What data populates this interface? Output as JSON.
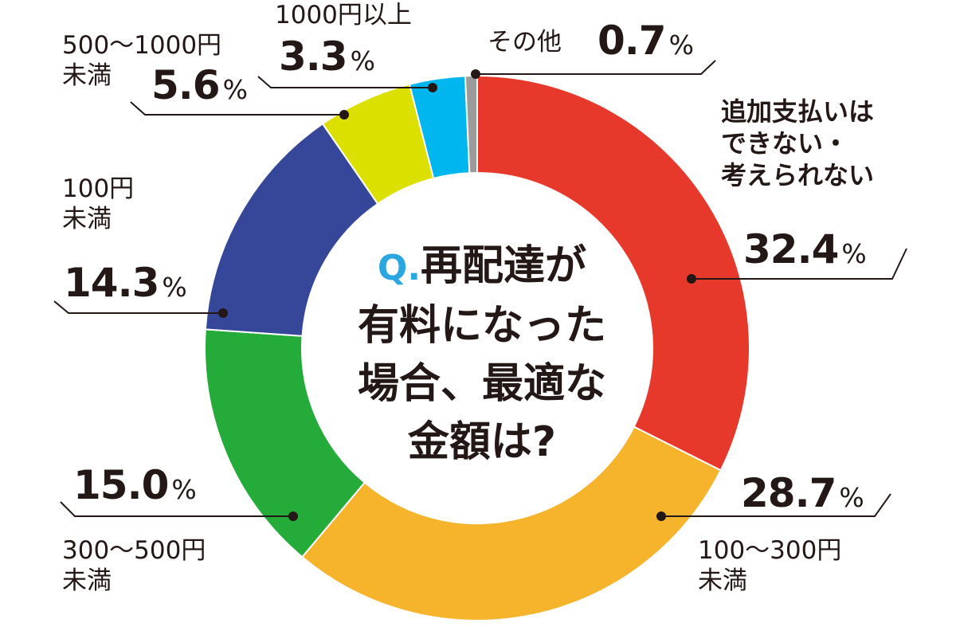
{
  "chart_data": {
    "type": "pie",
    "question_prefix": "Q.",
    "question_lines": [
      "再配達が",
      "有料になった",
      "場合、最適な",
      "金額は?"
    ],
    "unit": "%",
    "slices": [
      {
        "label": "追加支払いは\nできない・\n考えられない",
        "value": 32.4,
        "display": "32.4",
        "color": "#e7392b"
      },
      {
        "label": "100〜300円\n未満",
        "value": 28.7,
        "display": "28.7",
        "color": "#f6b42d"
      },
      {
        "label": "300〜500円\n未満",
        "value": 15.0,
        "display": "15.0",
        "color": "#24ab3a"
      },
      {
        "label": "100円\n未満",
        "value": 14.3,
        "display": "14.3",
        "color": "#36479a"
      },
      {
        "label": "500〜1000円\n未満",
        "value": 5.6,
        "display": "5.6",
        "color": "#dbe000"
      },
      {
        "label": "1000円以上",
        "value": 3.3,
        "display": "3.3",
        "color": "#00b6ef"
      },
      {
        "label": "その他",
        "value": 0.7,
        "display": "0.7",
        "color": "#9b9b9b"
      }
    ]
  }
}
